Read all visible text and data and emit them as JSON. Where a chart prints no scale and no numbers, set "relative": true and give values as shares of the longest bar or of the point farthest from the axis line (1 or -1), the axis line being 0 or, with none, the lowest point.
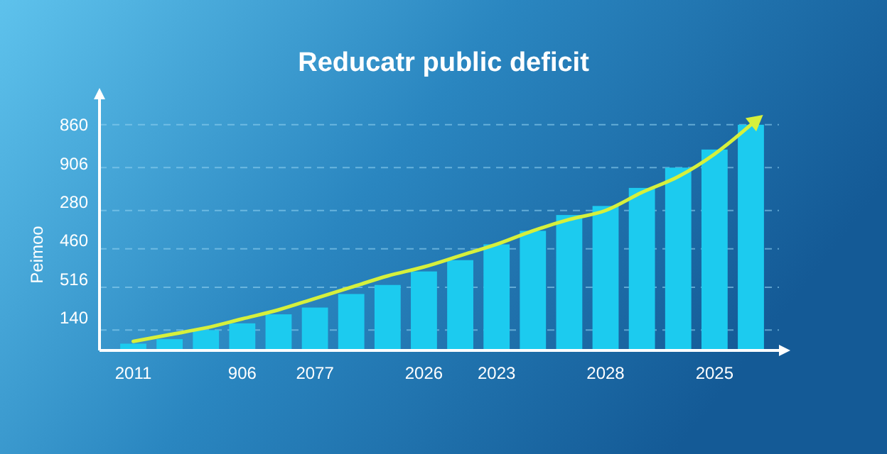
{
  "chart_data": {
    "type": "bar",
    "title": "Reducatr public deficit",
    "ylabel": "Peimoo",
    "relative": true,
    "categories": [
      "2011",
      null,
      null,
      "906",
      null,
      "2077",
      null,
      null,
      "2026",
      null,
      "2023",
      null,
      null,
      "2028",
      null,
      null,
      "2025",
      null
    ],
    "series": [
      {
        "color": "#1ccbef",
        "values": [
          0.03,
          0.05,
          0.09,
          0.12,
          0.16,
          0.19,
          0.25,
          0.29,
          0.35,
          0.4,
          0.47,
          0.53,
          0.6,
          0.64,
          0.72,
          0.81,
          0.89,
          1.0
        ]
      },
      {
        "type": "line",
        "color": "#d6f03c",
        "values": [
          0.04,
          0.07,
          0.1,
          0.14,
          0.18,
          0.23,
          0.28,
          0.33,
          0.37,
          0.42,
          0.47,
          0.53,
          0.58,
          0.62,
          0.7,
          0.77,
          0.87,
          1.0
        ]
      }
    ],
    "annotations": [
      "860",
      "906",
      "280",
      "460",
      "516",
      "140"
    ],
    "ref_lines": [
      {
        "axis": "y",
        "value": 1.0,
        "color": "#8fd0f0",
        "line_style": "dashed"
      },
      {
        "axis": "y",
        "value": 0.81,
        "color": "#8fd0f0",
        "line_style": "dashed"
      },
      {
        "axis": "y",
        "value": 0.62,
        "color": "#8fd0f0",
        "line_style": "dashed"
      },
      {
        "axis": "y",
        "value": 0.45,
        "color": "#8fd0f0",
        "line_style": "dashed"
      },
      {
        "axis": "y",
        "value": 0.28,
        "color": "#8fd0f0",
        "line_style": "dashed"
      },
      {
        "axis": "y",
        "value": 0.09,
        "color": "#8fd0f0",
        "line_style": "dashed"
      }
    ]
  }
}
